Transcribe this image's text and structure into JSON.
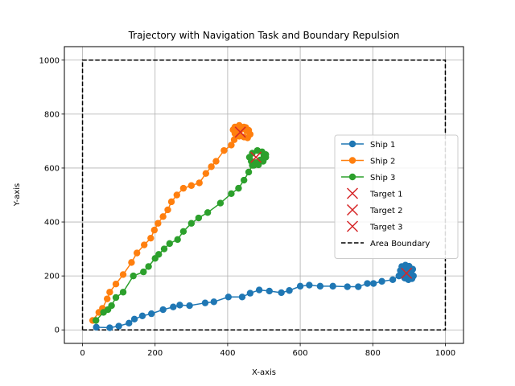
{
  "chart_data": {
    "type": "scatter",
    "title": "Trajectory with Navigation Task and Boundary Repulsion",
    "xlabel": "X-axis",
    "ylabel": "Y-axis",
    "xlim": [
      -50,
      1050
    ],
    "ylim": [
      -50,
      1050
    ],
    "xticks": [
      0,
      200,
      400,
      600,
      800,
      1000
    ],
    "yticks": [
      0,
      200,
      400,
      600,
      800,
      1000
    ],
    "grid": true,
    "legend_position": "center-right",
    "series": [
      {
        "name": "Ship 1",
        "kind": "line-marker",
        "color": "#1f77b4",
        "x": [
          38,
          75,
          100,
          128,
          143,
          165,
          190,
          222,
          250,
          268,
          295,
          338,
          362,
          402,
          440,
          462,
          487,
          515,
          548,
          570,
          600,
          625,
          655,
          690,
          730,
          760,
          785,
          802,
          825,
          855,
          872,
          882,
          890,
          896,
          900,
          905,
          912,
          908,
          898,
          888,
          880,
          876,
          880,
          890,
          900,
          910,
          906,
          895
        ],
        "y": [
          10,
          8,
          14,
          25,
          40,
          52,
          60,
          75,
          85,
          92,
          90,
          100,
          104,
          122,
          122,
          136,
          148,
          144,
          138,
          146,
          162,
          166,
          162,
          162,
          160,
          160,
          172,
          172,
          180,
          186,
          200,
          220,
          232,
          230,
          220,
          210,
          200,
          190,
          186,
          192,
          205,
          220,
          235,
          240,
          236,
          225,
          210,
          205
        ]
      },
      {
        "name": "Ship 2",
        "kind": "line-marker",
        "color": "#ff7f0e",
        "x": [
          28,
          45,
          55,
          68,
          75,
          92,
          112,
          135,
          150,
          170,
          188,
          198,
          208,
          222,
          235,
          245,
          260,
          278,
          300,
          322,
          340,
          355,
          368,
          390,
          410,
          418,
          425,
          432,
          440,
          450,
          458,
          462,
          455,
          445,
          432,
          420,
          415,
          420,
          432,
          445,
          452
        ],
        "y": [
          35,
          65,
          80,
          115,
          140,
          170,
          205,
          250,
          285,
          315,
          340,
          370,
          395,
          420,
          445,
          475,
          500,
          525,
          535,
          545,
          580,
          605,
          625,
          665,
          685,
          705,
          720,
          735,
          745,
          750,
          740,
          725,
          712,
          715,
          718,
          728,
          742,
          752,
          758,
          752,
          738
        ]
      },
      {
        "name": "Ship 3",
        "kind": "line-marker",
        "color": "#2ca02c",
        "x": [
          37,
          58,
          70,
          80,
          92,
          112,
          140,
          168,
          182,
          200,
          210,
          225,
          240,
          262,
          278,
          300,
          320,
          345,
          380,
          410,
          430,
          445,
          458,
          468,
          478,
          490,
          500,
          505,
          498,
          485,
          472,
          465,
          460,
          468,
          482,
          495,
          505
        ],
        "y": [
          35,
          65,
          75,
          90,
          120,
          140,
          200,
          215,
          235,
          265,
          280,
          300,
          320,
          335,
          365,
          395,
          415,
          435,
          470,
          505,
          525,
          555,
          585,
          610,
          620,
          630,
          645,
          640,
          625,
          612,
          610,
          625,
          640,
          655,
          665,
          660,
          650
        ]
      },
      {
        "name": "Target 1",
        "kind": "x-marker",
        "color": "#d62728",
        "x": [
          893
        ],
        "y": [
          210
        ]
      },
      {
        "name": "Target 2",
        "kind": "x-marker",
        "color": "#d62728",
        "x": [
          435
        ],
        "y": [
          733
        ]
      },
      {
        "name": "Target 3",
        "kind": "x-marker",
        "color": "#d62728",
        "x": [
          478
        ],
        "y": [
          640
        ]
      },
      {
        "name": "Area Boundary",
        "kind": "dashed-line",
        "color": "#000000",
        "x": [
          0,
          1000,
          1000,
          0,
          0
        ],
        "y": [
          0,
          0,
          1000,
          1000,
          0
        ]
      }
    ]
  }
}
